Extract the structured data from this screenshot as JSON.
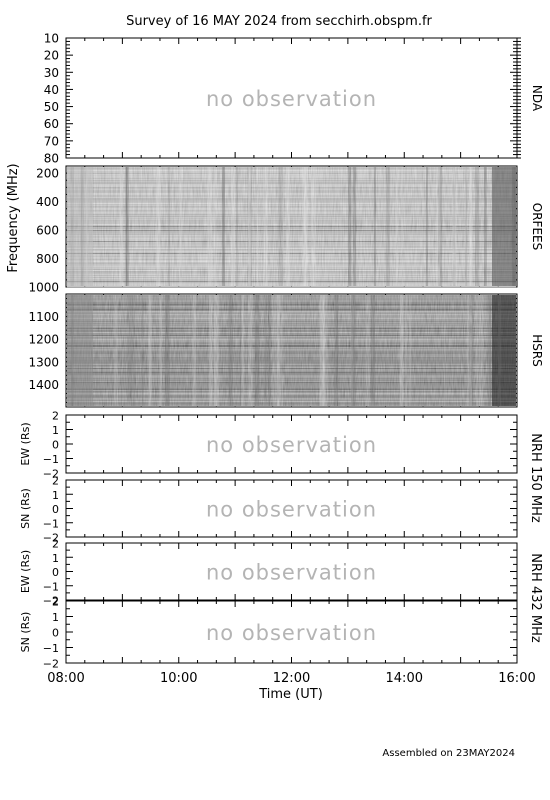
{
  "title": "Survey of 16 MAY 2024 from secchirh.obspm.fr",
  "footer": "Assembled on 23MAY2024",
  "chart_data": {
    "type": "heatmap",
    "xlabel": "Time (UT)",
    "xlim": [
      "08:00",
      "16:00"
    ],
    "x_ticks": [
      "08:00",
      "10:00",
      "12:00",
      "14:00",
      "16:00"
    ],
    "frequency_label": "Frequency (MHz)",
    "panels": [
      {
        "id": "nda",
        "instrument": "NDA",
        "ylim": [
          10,
          80
        ],
        "ticks": [
          "10",
          "20",
          "30",
          "40",
          "50",
          "60",
          "70",
          "80"
        ],
        "status": "no observation"
      },
      {
        "id": "orfees",
        "instrument": "ORFEES",
        "ylim": [
          150,
          1000
        ],
        "ticks": [
          "200",
          "400",
          "600",
          "800",
          "1000"
        ],
        "status": ""
      },
      {
        "id": "hsrs",
        "instrument": "HSRS",
        "ylim": [
          1000,
          1500
        ],
        "ticks": [
          "1100",
          "1200",
          "1300",
          "1400"
        ],
        "status": ""
      },
      {
        "id": "nrh150ew",
        "ylabel": "EW (Rs)",
        "ylim": [
          -2,
          2
        ],
        "ticks": [
          "2",
          "1",
          "0",
          "−1",
          "−2"
        ],
        "status": "no observation"
      },
      {
        "id": "nrh150sn",
        "ylabel": "SN (Rs)",
        "ylim": [
          -2,
          2
        ],
        "ticks": [
          "2",
          "1",
          "0",
          "−1",
          "−2"
        ],
        "status": "no observation"
      },
      {
        "id": "nrh432ew",
        "ylabel": "EW (Rs)",
        "ylim": [
          -2,
          2
        ],
        "ticks": [
          "2",
          "1",
          "0",
          "−1",
          "−2"
        ],
        "status": "no observation"
      },
      {
        "id": "nrh432sn",
        "ylabel": "SN (Rs)",
        "ylim": [
          -2,
          2
        ],
        "ticks": [
          "2",
          "1",
          "0",
          "−1",
          "−2"
        ],
        "status": "no observation"
      }
    ],
    "nrh_labels": [
      "NRH 150 MHz",
      "NRH 432 MHz"
    ]
  }
}
